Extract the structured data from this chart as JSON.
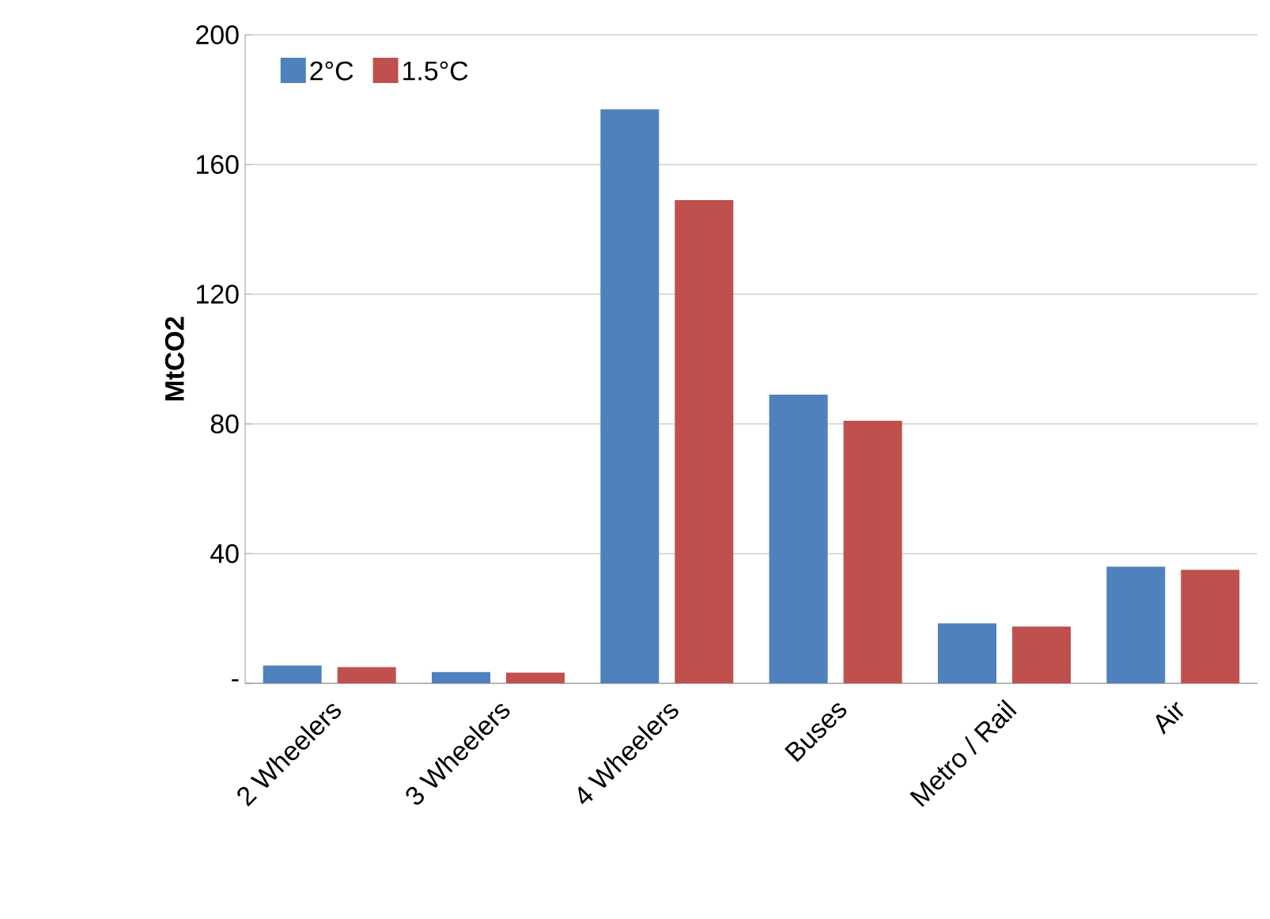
{
  "chart_data": {
    "type": "bar",
    "ylabel": "MtCO2",
    "categories": [
      "2 Wheelers",
      "3 Wheelers",
      "4 Wheelers",
      "Buses",
      "Metro / Rail",
      "Air"
    ],
    "series": [
      {
        "name": "2°C",
        "color": "#4f81bd",
        "values": [
          5.5,
          3.5,
          177,
          89,
          18.5,
          36
        ]
      },
      {
        "name": "1.5°C",
        "color": "#c0504d",
        "values": [
          5,
          3.3,
          149,
          81,
          17.5,
          35
        ]
      }
    ],
    "ylim": [
      0,
      200
    ],
    "yticks": [
      {
        "value": 0,
        "label": "-"
      },
      40,
      80,
      120,
      160,
      200
    ],
    "grid": "y",
    "legend": "top left"
  }
}
